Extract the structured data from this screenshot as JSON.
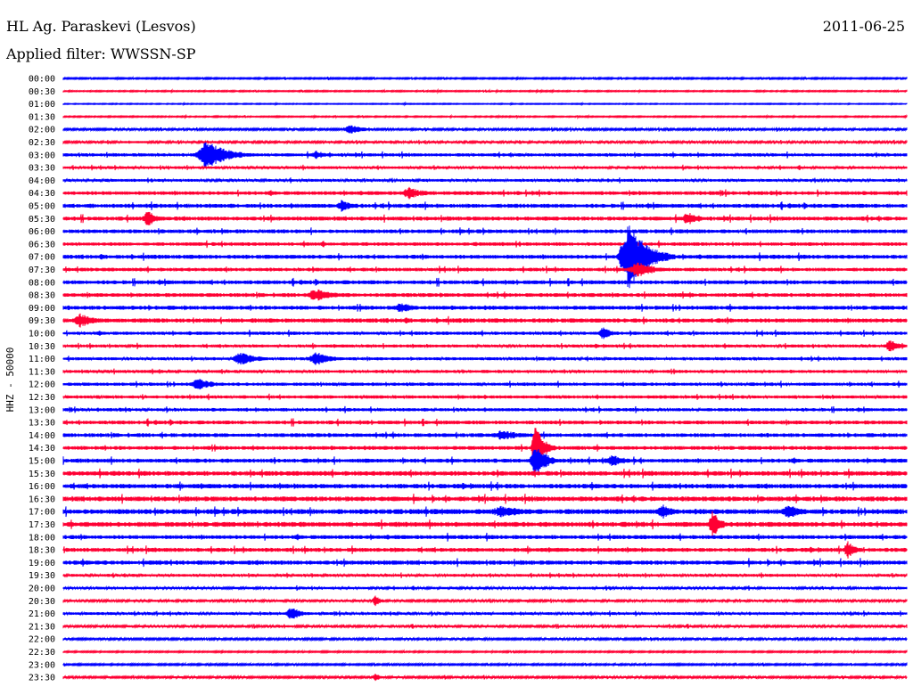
{
  "header": {
    "station": "HL Ag. Paraskevi (Lesvos)",
    "date": "2011-06-25",
    "filter": "Applied filter: WWSSN-SP"
  },
  "chart_data": {
    "type": "line",
    "ylabel": "HHZ - 50000",
    "colors": {
      "a": "#0000ff",
      "b": "#ff0033"
    },
    "rows": [
      "00:00",
      "00:30",
      "01:00",
      "01:30",
      "02:00",
      "02:30",
      "03:00",
      "03:30",
      "04:00",
      "04:30",
      "05:00",
      "05:30",
      "06:00",
      "06:30",
      "07:00",
      "07:30",
      "08:00",
      "08:30",
      "09:00",
      "09:30",
      "10:00",
      "10:30",
      "11:00",
      "11:30",
      "12:00",
      "12:30",
      "13:00",
      "13:30",
      "14:00",
      "14:30",
      "15:00",
      "15:30",
      "16:00",
      "16:30",
      "17:00",
      "17:30",
      "18:00",
      "18:30",
      "19:00",
      "19:30",
      "20:00",
      "20:30",
      "21:00",
      "21:30",
      "22:00",
      "22:30",
      "23:00",
      "23:30"
    ],
    "noise_levels": [
      0.6,
      0.5,
      0.4,
      0.5,
      0.8,
      0.9,
      1.3,
      1.1,
      1.1,
      1.5,
      1.6,
      1.6,
      1.5,
      1.4,
      1.6,
      1.4,
      1.6,
      1.5,
      1.6,
      1.7,
      1.3,
      1.2,
      1.2,
      1.2,
      1.3,
      1.3,
      1.3,
      1.5,
      1.5,
      1.5,
      1.6,
      1.8,
      1.8,
      1.9,
      2.0,
      1.9,
      1.6,
      1.6,
      1.7,
      1.1,
      1.0,
      0.9,
      1.1,
      0.9,
      0.8,
      0.6,
      0.7,
      0.8
    ],
    "events": [
      {
        "row": 6,
        "t": 0.17,
        "amp": 16,
        "width": 0.04
      },
      {
        "row": 6,
        "t": 0.3,
        "amp": 5,
        "width": 0.02
      },
      {
        "row": 4,
        "t": 0.34,
        "amp": 5,
        "width": 0.03
      },
      {
        "row": 9,
        "t": 0.41,
        "amp": 7,
        "width": 0.03
      },
      {
        "row": 11,
        "t": 0.1,
        "amp": 9,
        "width": 0.02
      },
      {
        "row": 11,
        "t": 0.74,
        "amp": 8,
        "width": 0.02
      },
      {
        "row": 14,
        "t": 0.67,
        "amp": 38,
        "width": 0.035
      },
      {
        "row": 15,
        "t": 0.68,
        "amp": 10,
        "width": 0.03
      },
      {
        "row": 10,
        "t": 0.33,
        "amp": 7,
        "width": 0.02
      },
      {
        "row": 17,
        "t": 0.3,
        "amp": 7,
        "width": 0.04
      },
      {
        "row": 18,
        "t": 0.4,
        "amp": 6,
        "width": 0.03
      },
      {
        "row": 22,
        "t": 0.21,
        "amp": 8,
        "width": 0.03
      },
      {
        "row": 22,
        "t": 0.3,
        "amp": 8,
        "width": 0.03
      },
      {
        "row": 24,
        "t": 0.16,
        "amp": 7,
        "width": 0.03
      },
      {
        "row": 28,
        "t": 0.52,
        "amp": 6,
        "width": 0.04
      },
      {
        "row": 29,
        "t": 0.56,
        "amp": 30,
        "width": 0.015
      },
      {
        "row": 30,
        "t": 0.56,
        "amp": 20,
        "width": 0.02
      },
      {
        "row": 30,
        "t": 0.65,
        "amp": 7,
        "width": 0.03
      },
      {
        "row": 34,
        "t": 0.52,
        "amp": 7,
        "width": 0.05
      },
      {
        "row": 34,
        "t": 0.71,
        "amp": 9,
        "width": 0.02
      },
      {
        "row": 34,
        "t": 0.86,
        "amp": 8,
        "width": 0.03
      },
      {
        "row": 35,
        "t": 0.77,
        "amp": 16,
        "width": 0.015
      },
      {
        "row": 37,
        "t": 0.93,
        "amp": 10,
        "width": 0.015
      },
      {
        "row": 42,
        "t": 0.27,
        "amp": 8,
        "width": 0.02
      },
      {
        "row": 41,
        "t": 0.37,
        "amp": 7,
        "width": 0.01
      },
      {
        "row": 47,
        "t": 0.37,
        "amp": 5,
        "width": 0.01
      },
      {
        "row": 20,
        "t": 0.64,
        "amp": 7,
        "width": 0.02
      },
      {
        "row": 19,
        "t": 0.02,
        "amp": 8,
        "width": 0.03
      },
      {
        "row": 21,
        "t": 0.98,
        "amp": 7,
        "width": 0.02
      }
    ]
  }
}
